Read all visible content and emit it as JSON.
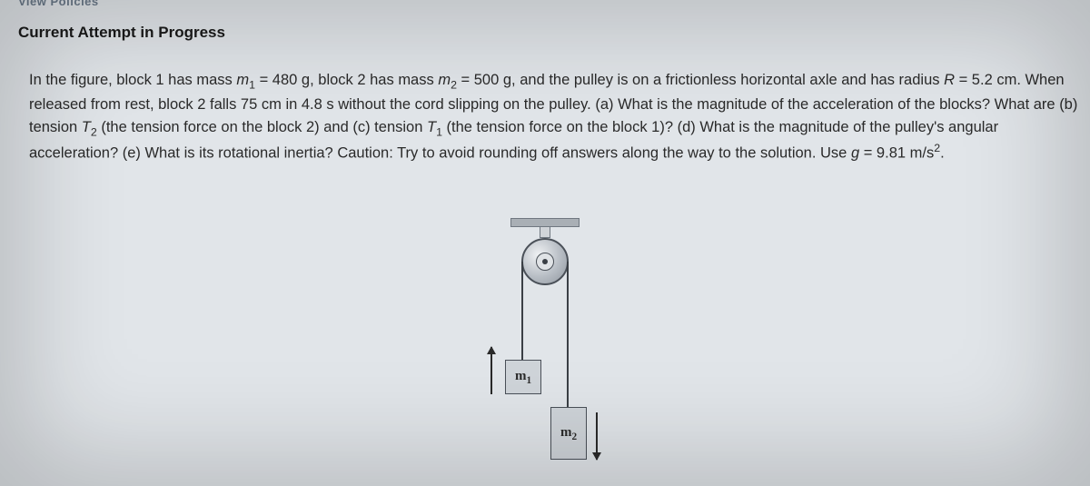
{
  "topbar_label": "View Policies",
  "section_title": "Current Attempt in Progress",
  "problem": {
    "p1a": "In the figure, block 1 has mass ",
    "m1sym": "m",
    "m1sub": "1",
    "eq1": " = 480 g, block 2 has mass ",
    "m2sym": "m",
    "m2sub": "2",
    "eq2": " = 500 g, and the pulley is on a frictionless horizontal axle and has radius ",
    "p2a": "R",
    "p2b": " = 5.2 cm. When released from rest, block 2 falls 75 cm in 4.8 s without the cord slipping on the pulley. (a) What is the magnitude of the acceleration of the blocks? What are (b) tension ",
    "T2sym": "T",
    "T2sub": "2",
    "p2c": " (the tension force on the block 2) and (c) tension ",
    "T1sym": "T",
    "T1sub": "1",
    "p2d": " (the tension force on the block 1)? (d) What is the magnitude of the pulley's angular acceleration? (e) What is its rotational inertia? Caution: Try to avoid rounding off answers along the way to the solution. Use ",
    "gsym": "g",
    "geq": " = 9.81 m/s",
    "gexp": "2",
    "gend": "."
  },
  "figure": {
    "m1_label": "m",
    "m1_sub": "1",
    "m2_label": "m",
    "m2_sub": "2",
    "colors": {
      "background": "#e1e5e9",
      "block_fill": "#cfd4d9",
      "block_border": "#4a5058",
      "cord": "#3a3f45",
      "ceiling": "#a9afb5"
    }
  }
}
